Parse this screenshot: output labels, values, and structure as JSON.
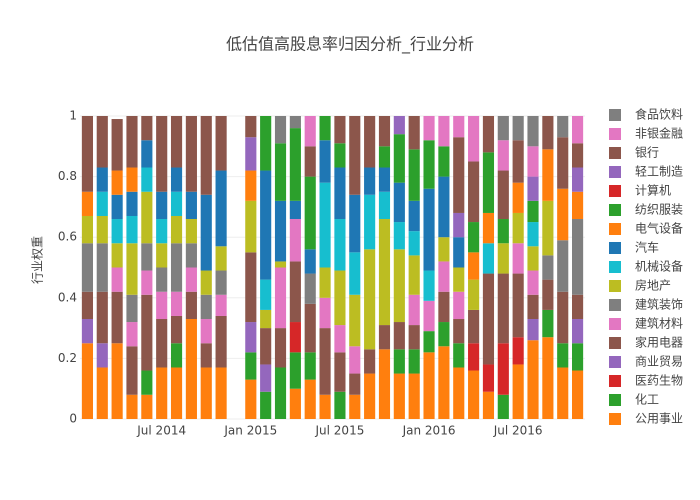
{
  "chart_data": {
    "type": "stacked_bar",
    "title": "低估值高股息率归因分析_行业分析",
    "y_label": "行业权重",
    "x": [
      "2014-02",
      "2014-03",
      "2014-04",
      "2014-05",
      "2014-06",
      "2014-07",
      "2014-08",
      "2014-09",
      "2014-10",
      "2014-11",
      "2014-12",
      "2015-01",
      "2015-02",
      "2015-03",
      "2015-04",
      "2015-05",
      "2015-06",
      "2015-07",
      "2015-08",
      "2015-09",
      "2015-10",
      "2015-11",
      "2015-12",
      "2016-01",
      "2016-02",
      "2016-03",
      "2016-04",
      "2016-05",
      "2016-06",
      "2016-07",
      "2016-08",
      "2016-09",
      "2016-10",
      "2016-11"
    ],
    "xlim": [
      "2014-02",
      "2016-11"
    ],
    "xticks": [
      {
        "value": "2014-07",
        "label": "Jul 2014"
      },
      {
        "value": "2015-01",
        "label": "Jan 2015"
      },
      {
        "value": "2015-07",
        "label": "Jul 2015"
      },
      {
        "value": "2016-01",
        "label": "Jan 2016"
      },
      {
        "value": "2016-07",
        "label": "Jul 2016"
      }
    ],
    "ylim": [
      0,
      1
    ],
    "yticks": [
      0,
      0.2,
      0.4,
      0.6,
      0.8,
      1
    ],
    "grid": true,
    "series": [
      {
        "name": "公用事业",
        "color": "#ff7f0e",
        "values": [
          0.25,
          0.17,
          0.25,
          0.08,
          0.08,
          0.17,
          0.17,
          0.33,
          0.17,
          0.17,
          null,
          0.13,
          0,
          0,
          0.1,
          0.13,
          0.08,
          0,
          0.08,
          0.15,
          0.23,
          0.15,
          0.15,
          0.22,
          0.24,
          0.17,
          0.16,
          0.09,
          0,
          0.18,
          0.26,
          0.27,
          0.17,
          0.16
        ]
      },
      {
        "name": "化工",
        "color": "#2ca02c",
        "values": [
          0,
          0,
          0,
          0,
          0.08,
          0,
          0.08,
          0,
          0,
          0,
          null,
          0.09,
          0.09,
          0.17,
          0.12,
          0.09,
          0,
          0.09,
          0,
          0,
          0,
          0.08,
          0.08,
          0.07,
          0.08,
          0.08,
          0,
          0,
          0.08,
          0,
          0,
          0.09,
          0.08,
          0.09
        ]
      },
      {
        "name": "医药生物",
        "color": "#d62728",
        "values": [
          0,
          0,
          0,
          0,
          0,
          0,
          0,
          0,
          0,
          0,
          null,
          0,
          0,
          0,
          0.1,
          0,
          0,
          0,
          0,
          0,
          0,
          0,
          0,
          0,
          0,
          0,
          0.09,
          0.09,
          0.17,
          0.09,
          0,
          0,
          0,
          0
        ]
      },
      {
        "name": "商业贸易",
        "color": "#9467bd",
        "values": [
          0.08,
          0.08,
          0,
          0,
          0,
          0,
          0,
          0,
          0,
          0,
          null,
          0.1,
          0.09,
          0,
          0,
          0,
          0,
          0,
          0,
          0,
          0,
          0,
          0,
          0,
          0,
          0,
          0,
          0,
          0,
          0,
          0.07,
          0,
          0,
          0.08
        ]
      },
      {
        "name": "家用电器",
        "color": "#8c564b",
        "values": [
          0.09,
          0.17,
          0.17,
          0.16,
          0.25,
          0.16,
          0.09,
          0.09,
          0.08,
          0.17,
          null,
          0.23,
          0.12,
          0.13,
          0.2,
          0.16,
          0.22,
          0.13,
          0.07,
          0.08,
          0.08,
          0.09,
          0.08,
          0,
          0.1,
          0.08,
          0.11,
          0.3,
          0.23,
          0.21,
          0.08,
          0.1,
          0.17,
          0.08
        ]
      },
      {
        "name": "建筑材料",
        "color": "#e377c2",
        "values": [
          0,
          0,
          0.08,
          0.08,
          0.08,
          0.09,
          0.08,
          0.08,
          0.08,
          0.07,
          null,
          0,
          0,
          0.2,
          0.14,
          0,
          0.1,
          0.09,
          0.09,
          0,
          0,
          0,
          0.1,
          0.1,
          0.1,
          0.09,
          0,
          0,
          0,
          0.1,
          0.08,
          0,
          0,
          0
        ]
      },
      {
        "name": "建筑装饰",
        "color": "#7f7f7f",
        "values": [
          0.16,
          0.16,
          0,
          0.09,
          0.09,
          0.08,
          0.16,
          0.08,
          0.08,
          0.08,
          null,
          0,
          0,
          0,
          0,
          0.1,
          0,
          0,
          0,
          0,
          0,
          0,
          0,
          0,
          0,
          0,
          0,
          0,
          0,
          0,
          0,
          0.08,
          0.17,
          0.25
        ]
      },
      {
        "name": "房地产",
        "color": "#bcbd22",
        "values": [
          0.09,
          0.09,
          0.08,
          0.17,
          0.17,
          0.08,
          0.09,
          0.08,
          0.08,
          0.08,
          null,
          0.17,
          0.06,
          0.02,
          0,
          0,
          0.1,
          0.18,
          0.17,
          0.33,
          0.35,
          0.24,
          0.13,
          0,
          0.08,
          0.08,
          0.1,
          0,
          0.1,
          0.1,
          0.08,
          0.18,
          0,
          0
        ]
      },
      {
        "name": "机械设备",
        "color": "#17becf",
        "values": [
          0,
          0.08,
          0.08,
          0.09,
          0.08,
          0.08,
          0.08,
          0,
          0,
          0,
          null,
          0,
          0.1,
          0,
          0,
          0,
          0.28,
          0.17,
          0.14,
          0.18,
          0.09,
          0.09,
          0.08,
          0.1,
          0,
          0,
          0,
          0.1,
          0,
          0,
          0.08,
          0,
          0,
          0
        ]
      },
      {
        "name": "汽车",
        "color": "#1f77b4",
        "values": [
          0,
          0.08,
          0.08,
          0.08,
          0.09,
          0.09,
          0.08,
          0.09,
          0.25,
          0.25,
          null,
          0,
          0.36,
          0.2,
          0.06,
          0.08,
          0.14,
          0.17,
          0.19,
          0.09,
          0.08,
          0.13,
          0.1,
          0.27,
          0.2,
          0.1,
          0,
          0,
          0,
          0,
          0,
          0,
          0,
          0
        ]
      },
      {
        "name": "电气设备",
        "color": "#ff7f0e",
        "values": [
          0.08,
          0,
          0.08,
          0.08,
          0,
          0,
          0,
          0,
          0,
          0,
          null,
          0.1,
          0,
          0,
          0,
          0,
          0,
          0,
          0,
          0,
          0,
          0,
          0,
          0,
          0,
          0,
          0.09,
          0.1,
          0,
          0.1,
          0,
          0.17,
          0.17,
          0.09
        ]
      },
      {
        "name": "纺织服装",
        "color": "#2ca02c",
        "values": [
          0,
          0,
          0,
          0,
          0,
          0,
          0,
          0,
          0,
          0,
          null,
          0,
          0.18,
          0.19,
          0.24,
          0.24,
          0.08,
          0.08,
          0,
          0,
          0.07,
          0.16,
          0.17,
          0.16,
          0.1,
          0,
          0.1,
          0.2,
          0.08,
          0,
          0.07,
          0,
          0,
          0
        ]
      },
      {
        "name": "计算机",
        "color": "#d62728",
        "values": [
          0,
          0,
          0,
          0,
          0,
          0,
          0,
          0,
          0,
          0,
          null,
          0,
          0,
          0,
          0,
          0,
          0,
          0,
          0,
          0,
          0,
          0,
          0,
          0,
          0,
          0,
          0,
          0,
          0,
          0,
          0,
          0,
          0,
          0
        ]
      },
      {
        "name": "轻工制造",
        "color": "#9467bd",
        "values": [
          0,
          0,
          0,
          0,
          0,
          0,
          0,
          0,
          0,
          0,
          null,
          0.11,
          0,
          0,
          0,
          0,
          0,
          0,
          0,
          0,
          0,
          0.06,
          0,
          0,
          0,
          0.08,
          0,
          0,
          0,
          0,
          0.08,
          0,
          0,
          0.08
        ]
      },
      {
        "name": "银行",
        "color": "#8c564b",
        "values": [
          0.25,
          0.17,
          0.17,
          0.17,
          0.08,
          0.25,
          0.17,
          0.25,
          0.26,
          0.18,
          null,
          0.07,
          0,
          0,
          0,
          0.1,
          0,
          0.09,
          0.26,
          0.17,
          0.1,
          0,
          0.11,
          0,
          0,
          0.25,
          0.2,
          0.12,
          0.16,
          0.14,
          0,
          0.11,
          0.17,
          0.08
        ]
      },
      {
        "name": "非银金融",
        "color": "#e377c2",
        "values": [
          0,
          0,
          0,
          0,
          0,
          0,
          0,
          0,
          0,
          0,
          null,
          0,
          0,
          0,
          0,
          0.1,
          0,
          0,
          0,
          0,
          0,
          0,
          0,
          0.08,
          0.1,
          0.07,
          0.15,
          0,
          0.1,
          0,
          0.1,
          0,
          0,
          0.09
        ]
      },
      {
        "name": "食品饮料",
        "color": "#7f7f7f",
        "values": [
          0,
          0,
          0,
          0,
          0,
          0,
          0,
          0,
          0,
          0,
          null,
          0,
          0,
          0.09,
          0.04,
          0,
          0,
          0,
          0,
          0,
          0,
          0,
          0,
          0,
          0,
          0,
          0,
          0,
          0.08,
          0.08,
          0.1,
          0,
          0.07,
          0
        ]
      }
    ]
  }
}
